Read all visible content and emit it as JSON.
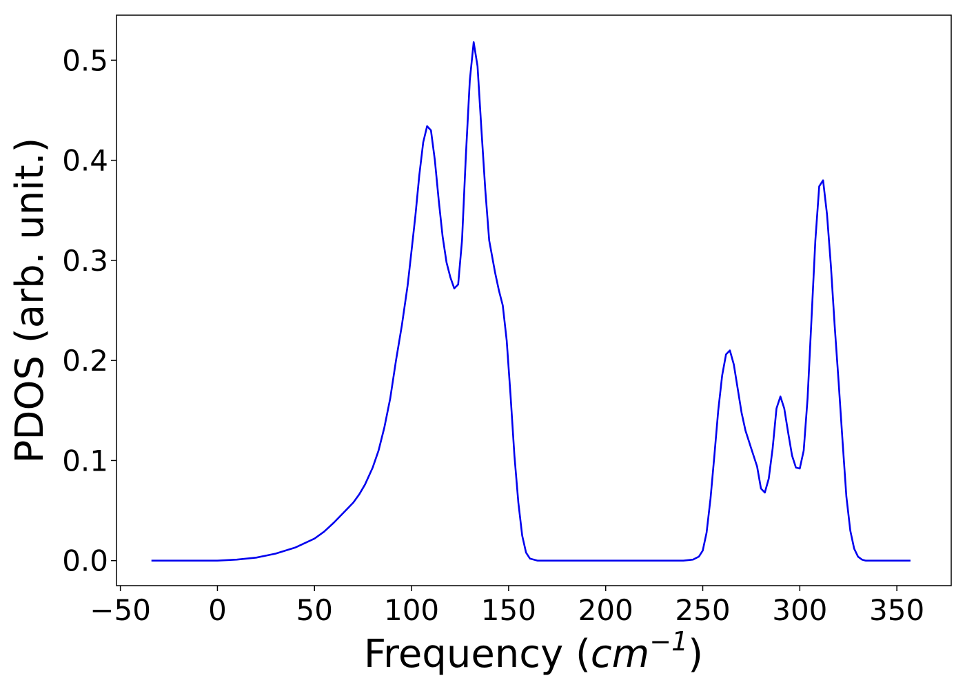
{
  "chart_data": {
    "type": "line",
    "title": "",
    "xlabel": "Frequency",
    "xlabel_unit_base": "cm",
    "xlabel_unit_exponent": "−1",
    "ylabel": "PDOS (arb. unit.)",
    "xlim": [
      -52,
      378
    ],
    "ylim": [
      -0.025,
      0.545
    ],
    "xticks": [
      -50,
      0,
      50,
      100,
      150,
      200,
      250,
      300,
      350
    ],
    "xtick_labels": [
      "−50",
      "0",
      "50",
      "100",
      "150",
      "200",
      "250",
      "300",
      "350"
    ],
    "yticks": [
      0.0,
      0.1,
      0.2,
      0.3,
      0.4,
      0.5
    ],
    "ytick_labels": [
      "0.0",
      "0.1",
      "0.2",
      "0.3",
      "0.4",
      "0.5"
    ],
    "grid": false,
    "legend": "none",
    "series": [
      {
        "color": "#0000ee",
        "x": [
          -34,
          -10,
          0,
          10,
          20,
          30,
          40,
          50,
          55,
          60,
          65,
          70,
          73,
          76,
          80,
          83,
          86,
          89,
          92,
          95,
          98,
          100,
          102,
          104,
          106,
          108,
          110,
          112,
          114,
          116,
          118,
          120,
          122,
          124,
          126,
          128,
          130,
          132,
          134,
          136,
          138,
          140,
          143,
          145,
          147,
          149,
          151,
          153,
          155,
          157,
          159,
          161,
          165,
          200,
          240,
          245,
          248,
          250,
          252,
          254,
          256,
          258,
          260,
          262,
          264,
          266,
          268,
          270,
          272,
          275,
          278,
          280,
          282,
          284,
          286,
          288,
          290,
          292,
          294,
          296,
          298,
          300,
          302,
          304,
          306,
          308,
          310,
          312,
          314,
          316,
          318,
          320,
          322,
          324,
          326,
          328,
          330,
          332,
          334,
          340,
          357
        ],
        "y": [
          0.0,
          0.0,
          0.0,
          0.001,
          0.003,
          0.007,
          0.013,
          0.022,
          0.029,
          0.038,
          0.048,
          0.058,
          0.066,
          0.076,
          0.093,
          0.11,
          0.133,
          0.162,
          0.2,
          0.235,
          0.275,
          0.31,
          0.345,
          0.385,
          0.418,
          0.434,
          0.43,
          0.4,
          0.36,
          0.324,
          0.298,
          0.283,
          0.272,
          0.276,
          0.32,
          0.405,
          0.48,
          0.518,
          0.494,
          0.43,
          0.37,
          0.32,
          0.288,
          0.27,
          0.255,
          0.22,
          0.165,
          0.105,
          0.058,
          0.025,
          0.008,
          0.002,
          0.0,
          0.0,
          0.0,
          0.001,
          0.004,
          0.01,
          0.028,
          0.062,
          0.105,
          0.15,
          0.185,
          0.206,
          0.21,
          0.196,
          0.172,
          0.148,
          0.13,
          0.112,
          0.094,
          0.072,
          0.068,
          0.082,
          0.112,
          0.152,
          0.164,
          0.152,
          0.128,
          0.105,
          0.093,
          0.092,
          0.11,
          0.162,
          0.24,
          0.32,
          0.374,
          0.38,
          0.346,
          0.295,
          0.234,
          0.178,
          0.12,
          0.064,
          0.03,
          0.012,
          0.004,
          0.001,
          0.0,
          0.0,
          0.0
        ]
      }
    ]
  }
}
